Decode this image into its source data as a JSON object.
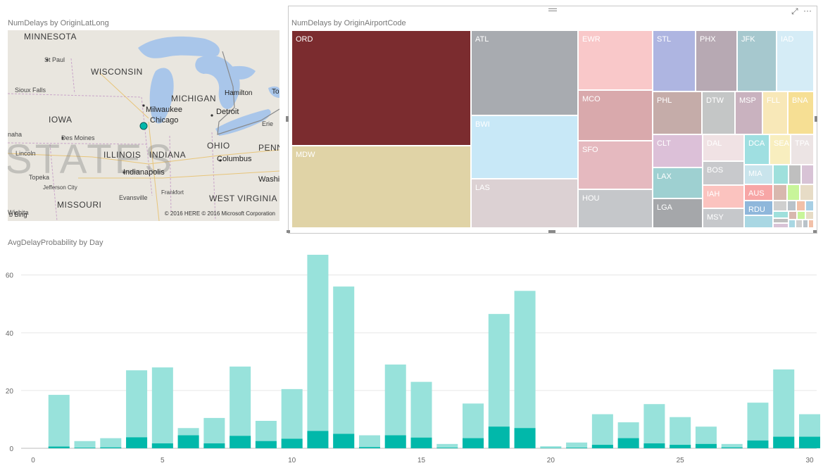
{
  "map_visual": {
    "title": "NumDelays by OriginLatLong",
    "labels": {
      "minnesota": "MINNESOTA",
      "st_paul": "St Paul",
      "wisconsin": "WISCONSIN",
      "michigan": "MICHIGAN",
      "hamilton": "Hamilton",
      "to": "To",
      "sioux_falls": "Sioux Falls",
      "iowa": "IOWA",
      "milwaukee": "Milwaukee",
      "detroit": "Detroit",
      "chicago": "Chicago",
      "erie": "Erie",
      "des_moines": "Des Moines",
      "naha": "naha",
      "lincoln": "Lincoln",
      "states": "STATES",
      "illinois": "ILLINOIS",
      "indiana": "INDIANA",
      "ohio": "OHIO",
      "penn": "PENN",
      "columbus": "Columbus",
      "topeka": "Topeka",
      "indianapolis": "Indianapolis",
      "washi": "Washi",
      "jefferson_city": "Jefferson City",
      "frankfort": "Frankfort",
      "missouri": "MISSOURI",
      "evansville": "Evansville",
      "west_virginia": "WEST VIRGINIA",
      "wichita": "Wichita"
    },
    "bing": "b Bing",
    "copyright": "© 2016 HERE  © 2016 Microsoft Corporation"
  },
  "treemap_visual": {
    "title": "NumDelays by OriginAirportCode",
    "header_icons": [
      "expand-icon",
      "more-options-icon"
    ],
    "more_label": "···",
    "focus_label": "⤢",
    "tiles": [
      {
        "code": "ORD",
        "color": "#7b2c2f",
        "light": false
      },
      {
        "code": "MDW",
        "color": "#e0d3a6",
        "light": true
      },
      {
        "code": "ATL",
        "color": "#a8abb0",
        "light": true
      },
      {
        "code": "BWI",
        "color": "#c8e8f7",
        "light": true
      },
      {
        "code": "LAS",
        "color": "#dcd1d3",
        "light": true
      },
      {
        "code": "EWR",
        "color": "#f9c8c9",
        "light": true
      },
      {
        "code": "MCO",
        "color": "#d9a9ac",
        "light": true
      },
      {
        "code": "SFO",
        "color": "#e5b9bf",
        "light": true
      },
      {
        "code": "HOU",
        "color": "#c5c7ca",
        "light": true
      },
      {
        "code": "STL",
        "color": "#aeb5e1",
        "light": true
      },
      {
        "code": "PHX",
        "color": "#b7a9b3",
        "light": true
      },
      {
        "code": "JFK",
        "color": "#a6c8ce",
        "light": true
      },
      {
        "code": "IAD",
        "color": "#d5ecf6",
        "light": true
      },
      {
        "code": "PHL",
        "color": "#c5aca9",
        "light": true
      },
      {
        "code": "DTW",
        "color": "#c4c6c6",
        "light": true
      },
      {
        "code": "MSP",
        "color": "#c9b2bf",
        "light": true
      },
      {
        "code": "FLL",
        "color": "#f8e8b8",
        "light": true
      },
      {
        "code": "BNA",
        "color": "#f6df94",
        "light": true
      },
      {
        "code": "CLT",
        "color": "#dcc0d8",
        "light": true
      },
      {
        "code": "DAL",
        "color": "#f0e2e4",
        "light": true
      },
      {
        "code": "DCA",
        "color": "#9fdfe1",
        "light": true
      },
      {
        "code": "SEA",
        "color": "#f8eebf",
        "light": true
      },
      {
        "code": "TPA",
        "color": "#ece4e4",
        "light": true
      },
      {
        "code": "LAX",
        "color": "#9ed0d1",
        "light": true
      },
      {
        "code": "BOS",
        "color": "#c8c9cc",
        "light": true
      },
      {
        "code": "MIA",
        "color": "#c9e4ec",
        "light": true
      },
      {
        "code": "IAH",
        "color": "#fbc3bf",
        "light": true
      },
      {
        "code": "AUS",
        "color": "#f7a6a6",
        "light": true
      },
      {
        "code": "LGA",
        "color": "#a5a7aa",
        "light": true
      },
      {
        "code": "MSY",
        "color": "#c6c8cb",
        "light": true
      },
      {
        "code": "RDU",
        "color": "#8fb7db",
        "light": true
      }
    ],
    "small_tile_colors": [
      "#9fe0dc",
      "#bfbfbf",
      "#d8c3d6",
      "#d8b8ae",
      "#c8f59a",
      "#e7dcc6",
      "#a9d7e3",
      "#cfcfcf",
      "#b9c2c9",
      "#f2c0a8",
      "#a7cfe5"
    ]
  },
  "bar_visual": {
    "title": "AvgDelayProbability by Day"
  },
  "chart_data": {
    "type": "bar",
    "title": "AvgDelayProbability by Day",
    "xlabel": "",
    "ylabel": "",
    "x_ticks": [
      0,
      5,
      10,
      15,
      20,
      25,
      30
    ],
    "y_ticks": [
      0,
      20,
      40,
      60
    ],
    "xlim": [
      -0.5,
      30.5
    ],
    "ylim": [
      0,
      67
    ],
    "grid": true,
    "colors": {
      "total": "#98e2db",
      "inner": "#01b8aa"
    },
    "series": [
      {
        "values_total": [
          18.5,
          2.5,
          3.5,
          27,
          28,
          7,
          10.5,
          28.3,
          9.5,
          20.5,
          67,
          56,
          4.5,
          29,
          23,
          1.5,
          15.5,
          46.5,
          54.5,
          0.7,
          2,
          11.8,
          9,
          15.3,
          10.8,
          7.5,
          1.5,
          15.8,
          27.3,
          11.8
        ]
      },
      {
        "values_inner": [
          0.6,
          0.2,
          0.3,
          3.8,
          1.7,
          4.5,
          1.7,
          4.3,
          2.5,
          3.3,
          6,
          5,
          0.4,
          4.5,
          3.7,
          0.2,
          3.5,
          7.5,
          7,
          0.1,
          0.2,
          1.2,
          3.5,
          1.7,
          1.2,
          1.5,
          0.3,
          2.7,
          4,
          4
        ]
      }
    ],
    "x": [
      1,
      2,
      3,
      4,
      5,
      6,
      7,
      8,
      9,
      10,
      11,
      12,
      13,
      14,
      15,
      16,
      17,
      18,
      19,
      20,
      21,
      22,
      23,
      24,
      25,
      26,
      27,
      28,
      29,
      30
    ]
  }
}
